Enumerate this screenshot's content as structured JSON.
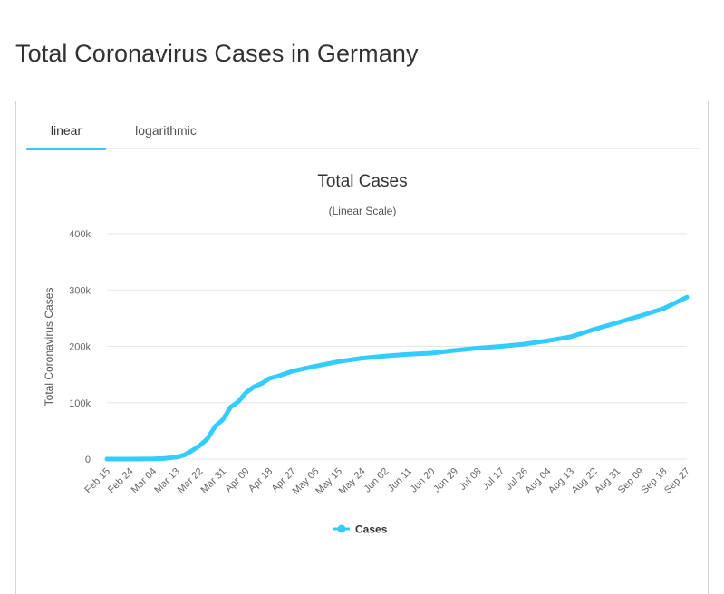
{
  "page": {
    "title": "Total Coronavirus Cases in Germany"
  },
  "tabs": [
    {
      "label": "linear",
      "active": true
    },
    {
      "label": "logarithmic",
      "active": false
    }
  ],
  "colors": {
    "series": "#33ccff",
    "grid": "#e6e6e6",
    "tab_underline": "#33ccff"
  },
  "chart_data": {
    "type": "line",
    "title": "Total Cases",
    "subtitle": "(Linear Scale)",
    "xlabel": "",
    "ylabel": "Total Coronavirus Cases",
    "ylim": [
      0,
      400000
    ],
    "y_ticks": [
      0,
      100000,
      200000,
      300000,
      400000
    ],
    "y_tick_labels": [
      "0",
      "100k",
      "200k",
      "300k",
      "400k"
    ],
    "x_tick_labels": [
      "Feb 15",
      "Feb 24",
      "Mar 04",
      "Mar 13",
      "Mar 22",
      "Mar 31",
      "Apr 09",
      "Apr 18",
      "Apr 27",
      "May 06",
      "May 15",
      "May 24",
      "Jun 02",
      "Jun 11",
      "Jun 20",
      "Jun 29",
      "Jul 08",
      "Jul 17",
      "Jul 26",
      "Aug 04",
      "Aug 13",
      "Aug 22",
      "Aug 31",
      "Sep 09",
      "Sep 18",
      "Sep 27"
    ],
    "grid": true,
    "legend_position": "bottom-center",
    "series": [
      {
        "name": "Cases",
        "x": [
          "Feb 15",
          "Feb 24",
          "Mar 04",
          "Mar 08",
          "Mar 13",
          "Mar 16",
          "Mar 19",
          "Mar 22",
          "Mar 25",
          "Mar 28",
          "Mar 31",
          "Apr 03",
          "Apr 06",
          "Apr 09",
          "Apr 12",
          "Apr 15",
          "Apr 18",
          "Apr 22",
          "Apr 27",
          "May 06",
          "May 15",
          "May 24",
          "Jun 02",
          "Jun 11",
          "Jun 20",
          "Jun 29",
          "Jul 08",
          "Jul 17",
          "Jul 26",
          "Aug 04",
          "Aug 13",
          "Aug 22",
          "Aug 31",
          "Sep 09",
          "Sep 18",
          "Sep 27"
        ],
        "values": [
          16,
          16,
          262,
          1000,
          3500,
          7000,
          15000,
          24000,
          36000,
          58000,
          70000,
          92000,
          102000,
          118000,
          128000,
          134000,
          143000,
          148000,
          156000,
          165000,
          173000,
          179000,
          183000,
          186000,
          188000,
          193000,
          197000,
          200000,
          204000,
          210000,
          217000,
          230000,
          242000,
          254000,
          267000,
          287000
        ]
      }
    ]
  }
}
